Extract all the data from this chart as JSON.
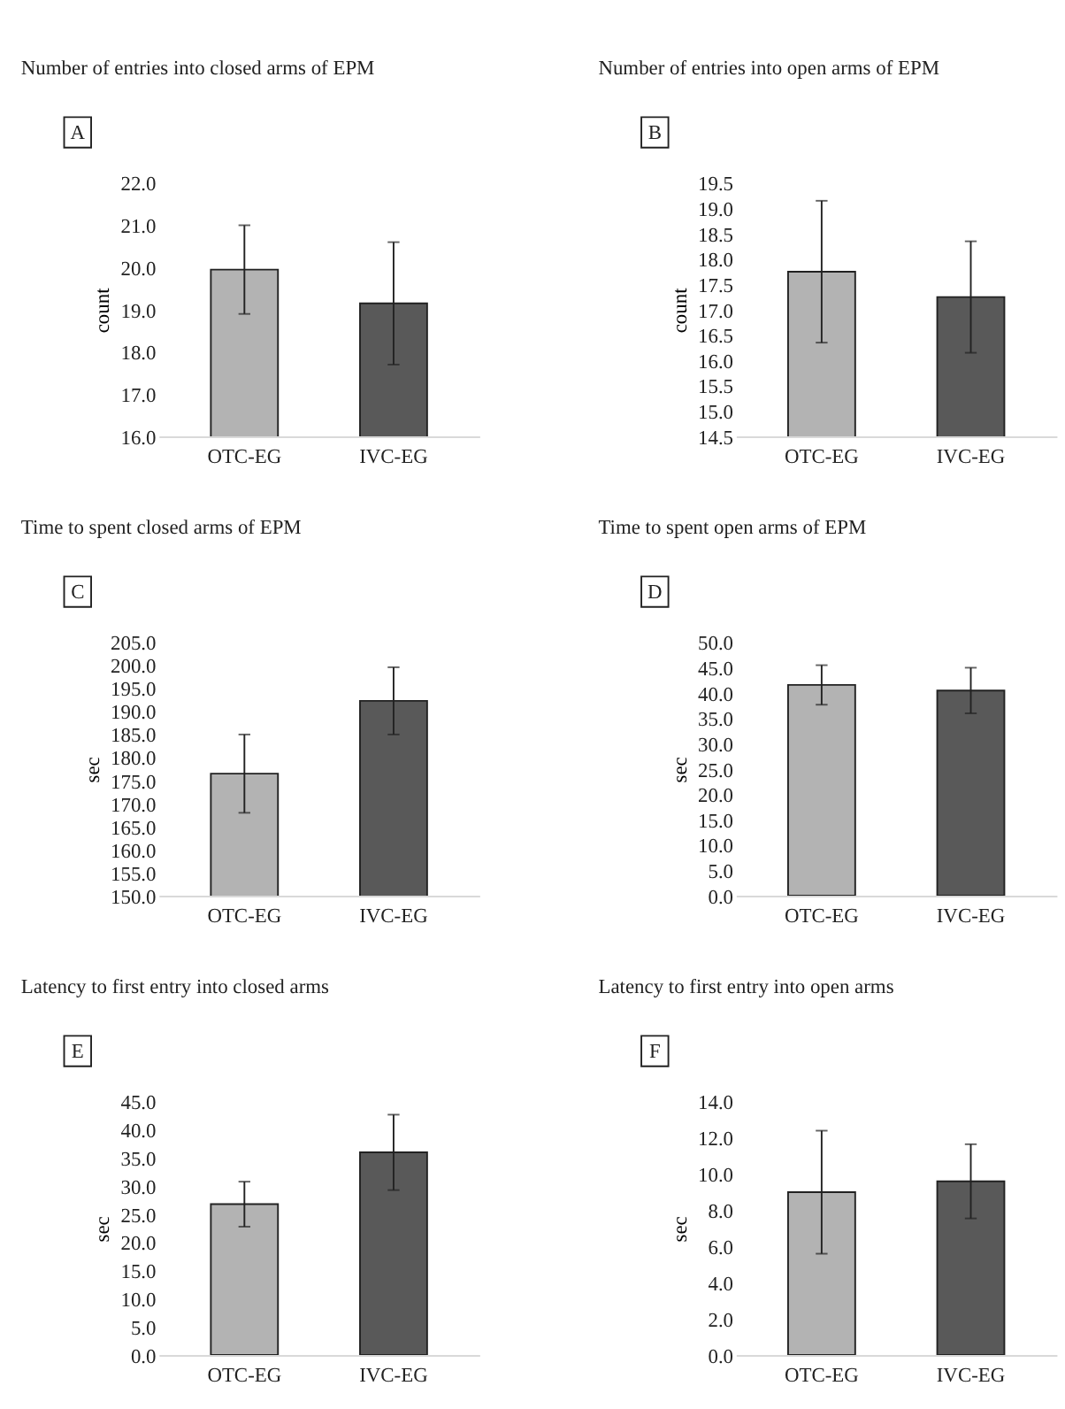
{
  "chart_data": [
    {
      "type": "bar",
      "title": "Number of entries into closed arms of EPM",
      "ylabel": "count",
      "annotations": [
        "A"
      ],
      "categories": [
        "OTC-EG",
        "IVC-EG"
      ],
      "values": [
        19.95,
        19.15
      ],
      "errors": [
        1.05,
        1.45
      ],
      "colors": [
        "#b3b3b3",
        "#595959"
      ],
      "ylim": [
        16,
        22
      ],
      "yticks": [
        {
          "value": 16,
          "label": "16.0"
        },
        {
          "value": 17,
          "label": "17.0"
        },
        {
          "value": 18,
          "label": "18.0"
        },
        {
          "value": 19,
          "label": "19.0"
        },
        {
          "value": 20,
          "label": "20.0"
        },
        {
          "value": 21,
          "label": "21.0"
        },
        {
          "value": 22,
          "label": "22.0"
        }
      ]
    },
    {
      "type": "bar",
      "title": "Number of entries into open arms of EPM",
      "ylabel": "count",
      "annotations": [
        "B"
      ],
      "categories": [
        "OTC-EG",
        "IVC-EG"
      ],
      "values": [
        17.75,
        17.25
      ],
      "errors": [
        1.4,
        1.1
      ],
      "colors": [
        "#b3b3b3",
        "#595959"
      ],
      "ylim": [
        14.5,
        19.5
      ],
      "yticks": [
        14.5,
        15.5,
        16.5,
        17.5,
        18.5,
        19.5,
        {
          "value": 15,
          "label": "15.0"
        },
        {
          "value": 16,
          "label": "16.0"
        },
        {
          "value": 17,
          "label": "17.0"
        },
        {
          "value": 18,
          "label": "18.0"
        },
        {
          "value": 19,
          "label": "19.0"
        }
      ]
    },
    {
      "type": "bar",
      "title": "Time to spent closed arms of EPM",
      "ylabel": "sec",
      "annotations": [
        "C"
      ],
      "categories": [
        "OTC-EG",
        "IVC-EG"
      ],
      "values": [
        176.5,
        192.3
      ],
      "errors": [
        8.5,
        7.3
      ],
      "colors": [
        "#b3b3b3",
        "#595959"
      ],
      "ylim": [
        150,
        205
      ],
      "yticks": [
        {
          "value": 150,
          "label": "150.0"
        },
        {
          "value": 155,
          "label": "155.0"
        },
        {
          "value": 160,
          "label": "160.0"
        },
        {
          "value": 165,
          "label": "165.0"
        },
        {
          "value": 170,
          "label": "170.0"
        },
        {
          "value": 175,
          "label": "175.0"
        },
        {
          "value": 180,
          "label": "180.0"
        },
        {
          "value": 185,
          "label": "185.0"
        },
        {
          "value": 190,
          "label": "190.0"
        },
        {
          "value": 195,
          "label": "195.0"
        },
        {
          "value": 200,
          "label": "200.0"
        },
        {
          "value": 205,
          "label": "205.0"
        }
      ]
    },
    {
      "type": "bar",
      "title": "Time to spent open arms of EPM",
      "ylabel": "sec",
      "annotations": [
        "D"
      ],
      "categories": [
        "OTC-EG",
        "IVC-EG"
      ],
      "values": [
        41.6,
        40.5
      ],
      "errors": [
        3.9,
        4.5
      ],
      "colors": [
        "#b3b3b3",
        "#595959"
      ],
      "ylim": [
        0,
        50
      ],
      "yticks": [
        {
          "value": 0,
          "label": "0.0"
        },
        {
          "value": 5,
          "label": "5.0"
        },
        {
          "value": 10,
          "label": "10.0"
        },
        {
          "value": 15,
          "label": "15.0"
        },
        {
          "value": 20,
          "label": "20.0"
        },
        {
          "value": 25,
          "label": "25.0"
        },
        {
          "value": 30,
          "label": "30.0"
        },
        {
          "value": 35,
          "label": "35.0"
        },
        {
          "value": 40,
          "label": "40.0"
        },
        {
          "value": 45,
          "label": "45.0"
        },
        {
          "value": 50,
          "label": "50.0"
        }
      ]
    },
    {
      "type": "bar",
      "title": "Latency to first entry into closed arms",
      "ylabel": "sec",
      "annotations": [
        "E"
      ],
      "categories": [
        "OTC-EG",
        "IVC-EG"
      ],
      "values": [
        26.8,
        36.0
      ],
      "errors": [
        4.0,
        6.7
      ],
      "colors": [
        "#b3b3b3",
        "#595959"
      ],
      "ylim": [
        0,
        45
      ],
      "yticks": [
        {
          "value": 0,
          "label": "0.0"
        },
        {
          "value": 5,
          "label": "5.0"
        },
        {
          "value": 10,
          "label": "10.0"
        },
        {
          "value": 15,
          "label": "15.0"
        },
        {
          "value": 20,
          "label": "20.0"
        },
        {
          "value": 25,
          "label": "25.0"
        },
        {
          "value": 30,
          "label": "30.0"
        },
        {
          "value": 35,
          "label": "35.0"
        },
        {
          "value": 40,
          "label": "40.0"
        },
        {
          "value": 45,
          "label": "45.0"
        }
      ]
    },
    {
      "type": "bar",
      "title": "Latency to first entry into open arms",
      "ylabel": "sec",
      "annotations": [
        "F"
      ],
      "categories": [
        "OTC-EG",
        "IVC-EG"
      ],
      "values": [
        9.0,
        9.6
      ],
      "errors": [
        3.4,
        2.05
      ],
      "colors": [
        "#b3b3b3",
        "#595959"
      ],
      "ylim": [
        0,
        14
      ],
      "yticks": [
        {
          "value": 0,
          "label": "0.0"
        },
        {
          "value": 2,
          "label": "2.0"
        },
        {
          "value": 4,
          "label": "4.0"
        },
        {
          "value": 6,
          "label": "6.0"
        },
        {
          "value": 8,
          "label": "8.0"
        },
        {
          "value": 10,
          "label": "10.0"
        },
        {
          "value": 12,
          "label": "12.0"
        },
        {
          "value": 14,
          "label": "14.0"
        }
      ]
    }
  ]
}
